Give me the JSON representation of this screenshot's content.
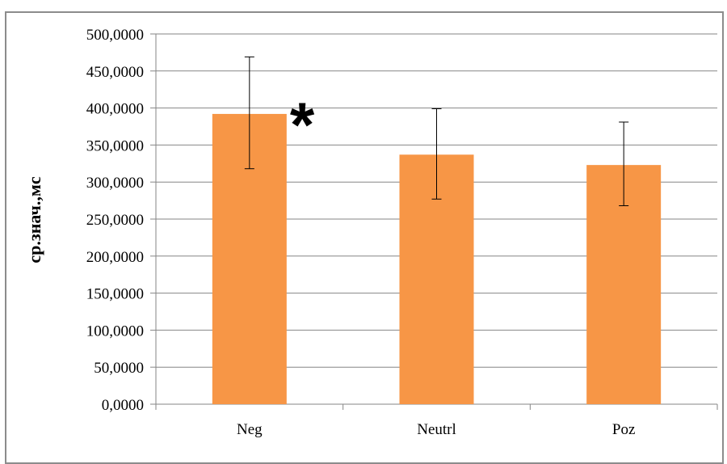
{
  "chart_data": {
    "type": "bar",
    "categories": [
      "Neg",
      "Neutrl",
      "Poz"
    ],
    "values": [
      392,
      337,
      323
    ],
    "error_low": [
      318,
      277,
      268
    ],
    "error_high": [
      469,
      399,
      381
    ],
    "title": "",
    "xlabel": "",
    "ylabel": "ср.знач.,мс",
    "ylim": [
      0,
      500
    ],
    "yticks": [
      0,
      50,
      100,
      150,
      200,
      250,
      300,
      350,
      400,
      450,
      500
    ],
    "ytick_labels": [
      "0,0000",
      "50,0000",
      "100,0000",
      "150,0000",
      "200,0000",
      "250,0000",
      "300,0000",
      "350,0000",
      "400,0000",
      "450,0000",
      "500,0000"
    ],
    "grid": true,
    "legend": "none",
    "bar_color": "#f79646",
    "gridline_color": "#868686",
    "annotations": [
      {
        "text": "*",
        "category": "Neg"
      }
    ]
  }
}
